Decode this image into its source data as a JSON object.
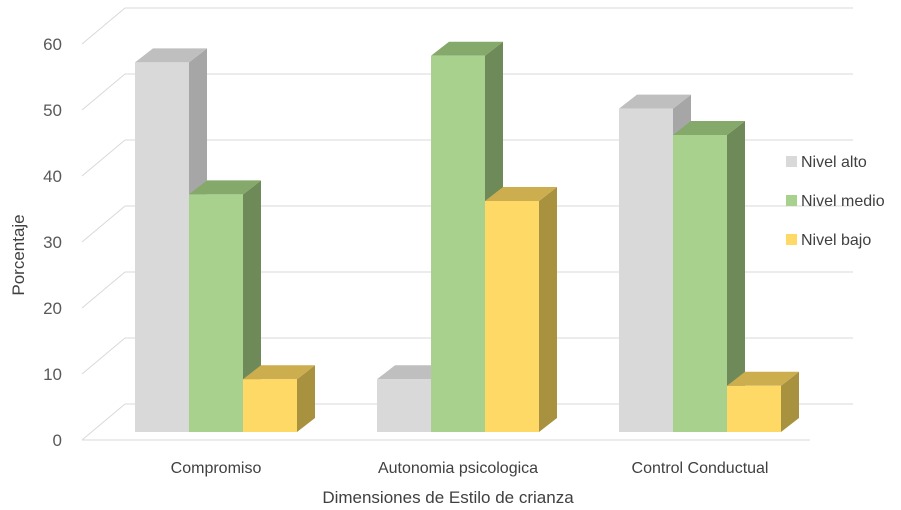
{
  "chart_data": {
    "type": "bar",
    "subtype": "3d-clustered-column",
    "categories": [
      "Compromiso",
      "Autonomia psicologica",
      "Control Conductual"
    ],
    "series": [
      {
        "name": "Nivel alto",
        "values": [
          56,
          8,
          49
        ],
        "color": "#D9D9D9",
        "side_color": "#A6A6A6",
        "top_color": "#BFBFBF"
      },
      {
        "name": "Nivel medio",
        "values": [
          36,
          57,
          45
        ],
        "color": "#A9D18E",
        "side_color": "#6E8A58",
        "top_color": "#85A86B"
      },
      {
        "name": "Nivel bajo",
        "values": [
          8,
          35,
          7
        ],
        "color": "#FFD966",
        "side_color": "#A8913F",
        "top_color": "#CCAE4F"
      }
    ],
    "xlabel": "Dimensiones de Estilo de crianza",
    "ylabel": "Porcentaje",
    "ylim": [
      0,
      60
    ],
    "yticks": [
      "0",
      "10",
      "20",
      "30",
      "40",
      "50",
      "60"
    ],
    "grid": true,
    "legend_position": "right"
  }
}
